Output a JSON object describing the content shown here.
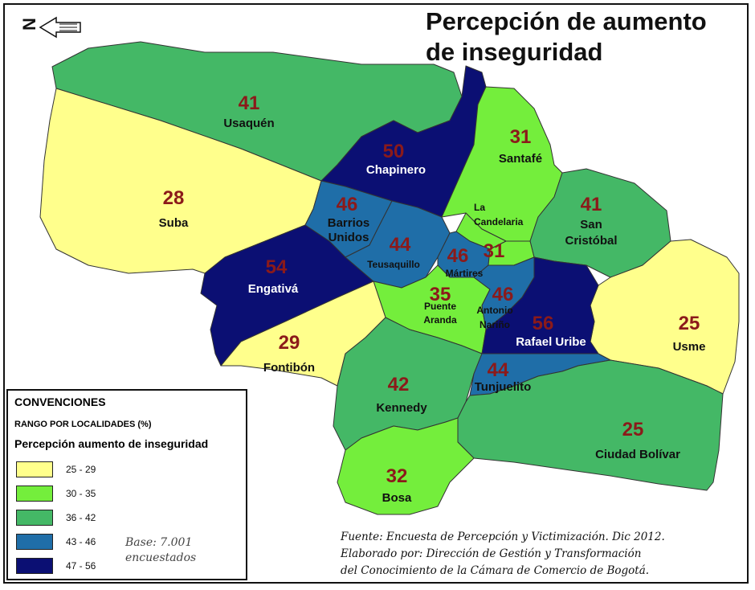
{
  "title_line1": "Percepción de aumento",
  "title_line2": "de inseguridad",
  "colors": {
    "range1": "#ffff8c",
    "range2": "#74ee3c",
    "range3": "#44b866",
    "range4": "#1f6ea8",
    "range5": "#0b0f73",
    "value_text": "#8b1a1a"
  },
  "localidades": [
    {
      "name": "Usaquén",
      "value": "41"
    },
    {
      "name": "Chapinero",
      "value": "50"
    },
    {
      "name": "Santafé",
      "value": "31"
    },
    {
      "name": "Suba",
      "value": "28"
    },
    {
      "name": "Barrios Unidos",
      "name_l1": "Barrios",
      "name_l2": "Unidos",
      "value": "46"
    },
    {
      "name": "La Candelaria",
      "name_l1": "La",
      "name_l2": "Candelaria",
      "value": "31"
    },
    {
      "name": "San Cristóbal",
      "name_l1": "San",
      "name_l2": "Cristóbal",
      "value": "41"
    },
    {
      "name": "Teusaquillo",
      "value": "44"
    },
    {
      "name": "Mártires",
      "value": "46"
    },
    {
      "name": "Engativá",
      "value": "54"
    },
    {
      "name": "Puente Aranda",
      "name_l1": "Puente",
      "name_l2": "Aranda",
      "value": "35"
    },
    {
      "name": "Antonio Nariño",
      "name_l1": "Antonio",
      "name_l2": "Nariño",
      "value": "46"
    },
    {
      "name": "Rafael Uribe",
      "value": "56"
    },
    {
      "name": "Usme",
      "value": "25"
    },
    {
      "name": "Fontibón",
      "value": "29"
    },
    {
      "name": "Kennedy",
      "value": "42"
    },
    {
      "name": "Tunjuelito",
      "value": "44"
    },
    {
      "name": "Ciudad Bolívar",
      "value": "25"
    },
    {
      "name": "Bosa",
      "value": "32"
    }
  ],
  "legend": {
    "title": "CONVENCIONES",
    "subtitle": "RANGO POR LOCALIDADES (%)",
    "heading": "Percepción aumento de inseguridad",
    "ranges": [
      "25 - 29",
      "30 - 35",
      "36 - 42",
      "43 - 46",
      "47 - 56"
    ],
    "base_l1": "Base: 7.001",
    "base_l2": "encuestados"
  },
  "source": {
    "line1": "Fuente: Encuesta de Percepción y Victimización. Dic 2012.",
    "line2": "Elaborado por: Dirección de Gestión y Transformación",
    "line3": "del Conocimiento de la Cámara de Comercio de Bogotá."
  },
  "compass_letter": "N"
}
